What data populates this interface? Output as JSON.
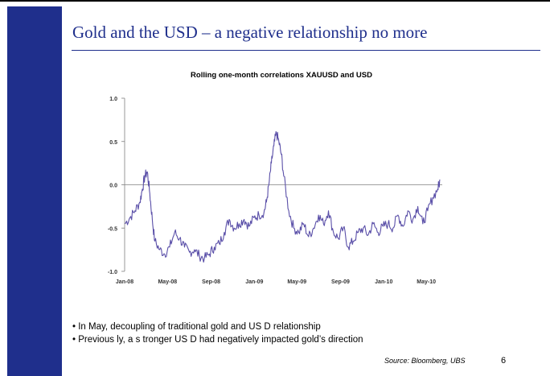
{
  "slide": {
    "title": "Gold and the USD – a negative relationship no more",
    "bullets": [
      "• In May, decoupling of traditional gold and US D relationship",
      "• Previous ly, a s tronger US D had negatively impacted gold’s direction"
    ],
    "source": "Source: Bloomberg, UBS",
    "page_number": "6",
    "colors": {
      "accent": "#1f2f8c",
      "line": "#5a4fa8"
    }
  },
  "chart_data": {
    "type": "line",
    "title": "Rolling one-month correlations XAUUSD and USD",
    "xlabel": "",
    "ylabel": "",
    "ylim": [
      -1.0,
      1.0
    ],
    "yticks": [
      "1.0",
      "0.5",
      "0.0",
      "-0.5",
      "-1.0"
    ],
    "xticks": [
      "Jan-08",
      "May-08",
      "Sep-08",
      "Jan-09",
      "May-09",
      "Sep-09",
      "Jan-10",
      "May-10"
    ],
    "grid": false,
    "legend": "none",
    "series": [
      {
        "x": [
          "2008-01-02",
          "2008-01-16",
          "2008-01-30",
          "2008-02-13",
          "2008-02-20",
          "2008-02-27",
          "2008-03-05",
          "2008-03-12",
          "2008-03-19",
          "2008-03-26",
          "2008-04-09",
          "2008-04-23",
          "2008-05-07",
          "2008-05-21",
          "2008-06-04",
          "2008-06-18",
          "2008-07-02",
          "2008-07-16",
          "2008-07-30",
          "2008-08-13",
          "2008-08-27",
          "2008-09-10",
          "2008-09-24",
          "2008-10-08",
          "2008-10-22",
          "2008-11-05",
          "2008-11-19",
          "2008-12-03",
          "2008-12-17",
          "2008-12-31",
          "2009-01-14",
          "2009-01-28",
          "2009-02-04",
          "2009-02-11",
          "2009-02-18",
          "2009-02-25",
          "2009-03-04",
          "2009-03-11",
          "2009-03-18",
          "2009-03-25",
          "2009-04-08",
          "2009-04-22",
          "2009-05-06",
          "2009-05-20",
          "2009-06-03",
          "2009-06-17",
          "2009-07-01",
          "2009-07-15",
          "2009-07-29",
          "2009-08-12",
          "2009-08-26",
          "2009-09-09",
          "2009-09-23",
          "2009-10-07",
          "2009-10-21",
          "2009-11-04",
          "2009-11-18",
          "2009-12-02",
          "2009-12-16",
          "2009-12-30",
          "2010-01-13",
          "2010-01-27",
          "2010-02-10",
          "2010-02-24",
          "2010-03-10",
          "2010-03-24",
          "2010-04-07",
          "2010-04-21",
          "2010-05-05",
          "2010-05-19",
          "2010-06-02",
          "2010-06-09"
        ],
        "y": [
          -0.45,
          -0.38,
          -0.3,
          -0.2,
          -0.05,
          0.1,
          0.15,
          -0.1,
          -0.4,
          -0.65,
          -0.75,
          -0.8,
          -0.72,
          -0.55,
          -0.62,
          -0.72,
          -0.78,
          -0.75,
          -0.82,
          -0.85,
          -0.8,
          -0.72,
          -0.68,
          -0.55,
          -0.4,
          -0.5,
          -0.45,
          -0.4,
          -0.48,
          -0.38,
          -0.35,
          -0.32,
          -0.2,
          0.0,
          0.25,
          0.45,
          0.6,
          0.5,
          0.35,
          0.1,
          -0.3,
          -0.5,
          -0.55,
          -0.45,
          -0.6,
          -0.5,
          -0.35,
          -0.45,
          -0.3,
          -0.55,
          -0.62,
          -0.5,
          -0.72,
          -0.65,
          -0.55,
          -0.5,
          -0.58,
          -0.45,
          -0.55,
          -0.48,
          -0.45,
          -0.5,
          -0.35,
          -0.48,
          -0.3,
          -0.4,
          -0.25,
          -0.45,
          -0.3,
          -0.15,
          -0.05,
          0.05
        ]
      }
    ]
  }
}
